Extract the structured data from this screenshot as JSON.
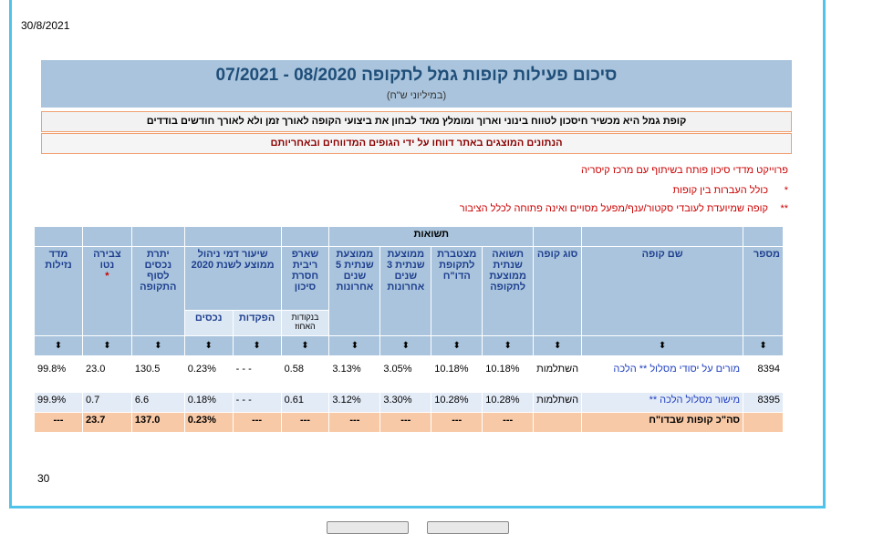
{
  "report": {
    "date": "30/8/2021",
    "page_number": "30",
    "title": "סיכום פעילות קופות גמל לתקופה  08/2020 - 07/2021",
    "subtitle": "(במיליוני ש\"ח)",
    "note1": "קופת גמל היא מכשיר חיסכון לטווח בינוני וארוך ומומלץ מאד לבחון את ביצועי הקופה לאורך זמן ולא לאורך חודשים בודדים",
    "note2": "הנתונים המוצגים באתר דווחו על ידי הגופים המדווחים ובאחריותם"
  },
  "legend": {
    "line1": "פרוייקט מדדי סיכון פותח בשיתוף עם מרכז קיסריה",
    "line2_mark": "*",
    "line2": "כולל העברות בין קופות",
    "line3_mark": "**",
    "line3": "קופה שמיועדת לעובדי סקטור/ענף/מפעל מסויים ואינה פתוחה לכלל הציבור"
  },
  "table": {
    "group_header": "תשואות",
    "headers": {
      "number": "מספר",
      "fund_name": "שם קופה",
      "fund_type": "סוג קופה",
      "avg_monthly_return": "תשואה שנתית ממוצעת לתקופה",
      "cumulative_return": "מצטברת לתקופת הדו\"ח",
      "avg_3y": "ממוצעת שנתית 3 שנים אחרונות",
      "avg_5y": "ממוצעת שנתית 5 שנים אחרונות",
      "sharpe": "שארפ ריבית חסרת סיכון",
      "sharpe_sub": "בנקודות האחוז",
      "mgmt_fee": "שיעור דמי ניהול ממוצע לשנת 2020",
      "mgmt_deposits": "הפקדות",
      "mgmt_assets": "נכסים",
      "assets_end": "יתרת נכסים לסוף התקופה",
      "net_accrual": "צבירה נטו",
      "net_accrual_mark": "*",
      "liquidity": "מדד נזילות"
    },
    "sort_glyph": "⬍",
    "rows": [
      {
        "number": "8394",
        "fund_name": "מורים על יסודי מסלול ** הלכה",
        "fund_type": "השתלמות",
        "avg_return": "10.18%",
        "cumulative": "10.18%",
        "avg_3y": "3.05%",
        "avg_5y": "3.13%",
        "sharpe": "0.58",
        "fee_deposits": "- - -",
        "fee_assets": "0.23%",
        "assets_end": "130.5",
        "net_accrual": "23.0",
        "liquidity": "99.8%"
      },
      {
        "number": "8395",
        "fund_name": "מישור מסלול הלכה **",
        "fund_type": "השתלמות",
        "avg_return": "10.28%",
        "cumulative": "10.28%",
        "avg_3y": "3.30%",
        "avg_5y": "3.12%",
        "sharpe": "0.61",
        "fee_deposits": "- - -",
        "fee_assets": "0.18%",
        "assets_end": "6.6",
        "net_accrual": "0.7",
        "liquidity": "99.9%"
      }
    ],
    "total": {
      "label": "סה\"כ קופות שבדו\"ח",
      "avg_return": "---",
      "cumulative": "---",
      "avg_3y": "---",
      "avg_5y": "---",
      "sharpe": "---",
      "fee_deposits": "---",
      "fee_assets": "0.23%",
      "assets_end": "137.0",
      "net_accrual": "23.7",
      "liquidity": "---"
    }
  }
}
